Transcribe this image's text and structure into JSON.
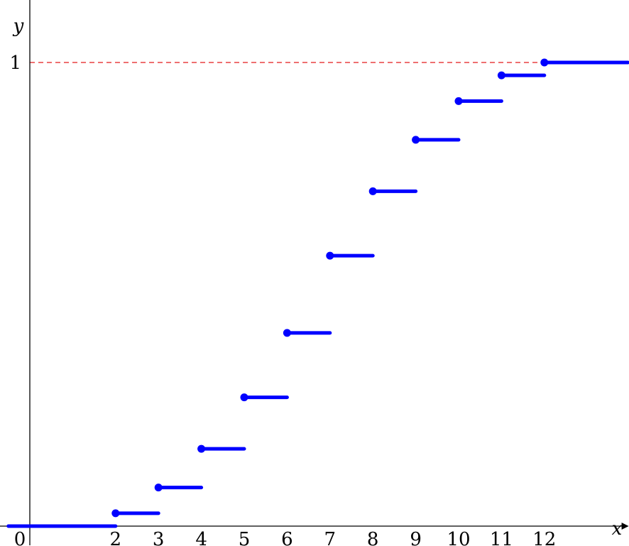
{
  "chart_data": {
    "type": "line",
    "title": "",
    "xlabel": "x",
    "ylabel": "y",
    "xlim": [
      -0.5,
      13.95
    ],
    "ylim": [
      0,
      1.16
    ],
    "x_tick_labels": [
      "0",
      "2",
      "3",
      "4",
      "5",
      "6",
      "7",
      "8",
      "9",
      "10",
      "11",
      "12"
    ],
    "x_tick_values": [
      0,
      2,
      3,
      4,
      5,
      6,
      7,
      8,
      9,
      10,
      11,
      12
    ],
    "y_tick_labels": [
      "1"
    ],
    "y_tick_values": [
      1
    ],
    "reference_line": {
      "y": 1,
      "color": "#e41a1c",
      "style": "dashed"
    },
    "series": [
      {
        "type": "step",
        "color": "#0000ff",
        "segments": [
          {
            "x_start": -0.5,
            "x_end": 2,
            "y": 0,
            "closed_dot": false
          },
          {
            "x_start": 2,
            "x_end": 3,
            "y": 0.0278,
            "closed_dot": true
          },
          {
            "x_start": 3,
            "x_end": 4,
            "y": 0.0833,
            "closed_dot": true
          },
          {
            "x_start": 4,
            "x_end": 5,
            "y": 0.1667,
            "closed_dot": true
          },
          {
            "x_start": 5,
            "x_end": 6,
            "y": 0.2778,
            "closed_dot": true
          },
          {
            "x_start": 6,
            "x_end": 7,
            "y": 0.4167,
            "closed_dot": true
          },
          {
            "x_start": 7,
            "x_end": 8,
            "y": 0.5833,
            "closed_dot": true
          },
          {
            "x_start": 8,
            "x_end": 9,
            "y": 0.7222,
            "closed_dot": true
          },
          {
            "x_start": 9,
            "x_end": 10,
            "y": 0.8333,
            "closed_dot": true
          },
          {
            "x_start": 10,
            "x_end": 11,
            "y": 0.9167,
            "closed_dot": true
          },
          {
            "x_start": 11,
            "x_end": 12,
            "y": 0.9722,
            "closed_dot": true
          },
          {
            "x_start": 12,
            "x_end": 13.95,
            "y": 1,
            "closed_dot": true
          }
        ]
      }
    ]
  }
}
